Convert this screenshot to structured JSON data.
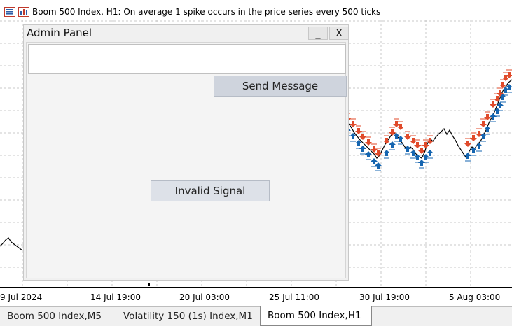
{
  "chart": {
    "title": "Boom 500 Index, H1:  On average 1 spike occurs in the price series every 500 ticks",
    "time_labels": [
      "9 Jul 2024",
      "14 Jul 19:00",
      "20 Jul 03:00",
      "25 Jul 11:00",
      "30 Jul 19:00",
      "5 Aug 03:00"
    ],
    "colors": {
      "buy_arrow": "#1565b0",
      "sell_arrow": "#e04a2a",
      "price_line": "#000000",
      "grid": "#c8c8c8"
    }
  },
  "admin_panel": {
    "title": "Admin Panel",
    "minimize_label": "_",
    "close_label": "X",
    "message_value": "",
    "send_label": "Send Message",
    "invalid_label": "Invalid Signal"
  },
  "tabs": [
    {
      "label": "Boom 500 Index,M5"
    },
    {
      "label": "Volatility 150 (1s) Index,M1"
    },
    {
      "label": "Boom 500 Index,H1",
      "active": true
    }
  ]
}
